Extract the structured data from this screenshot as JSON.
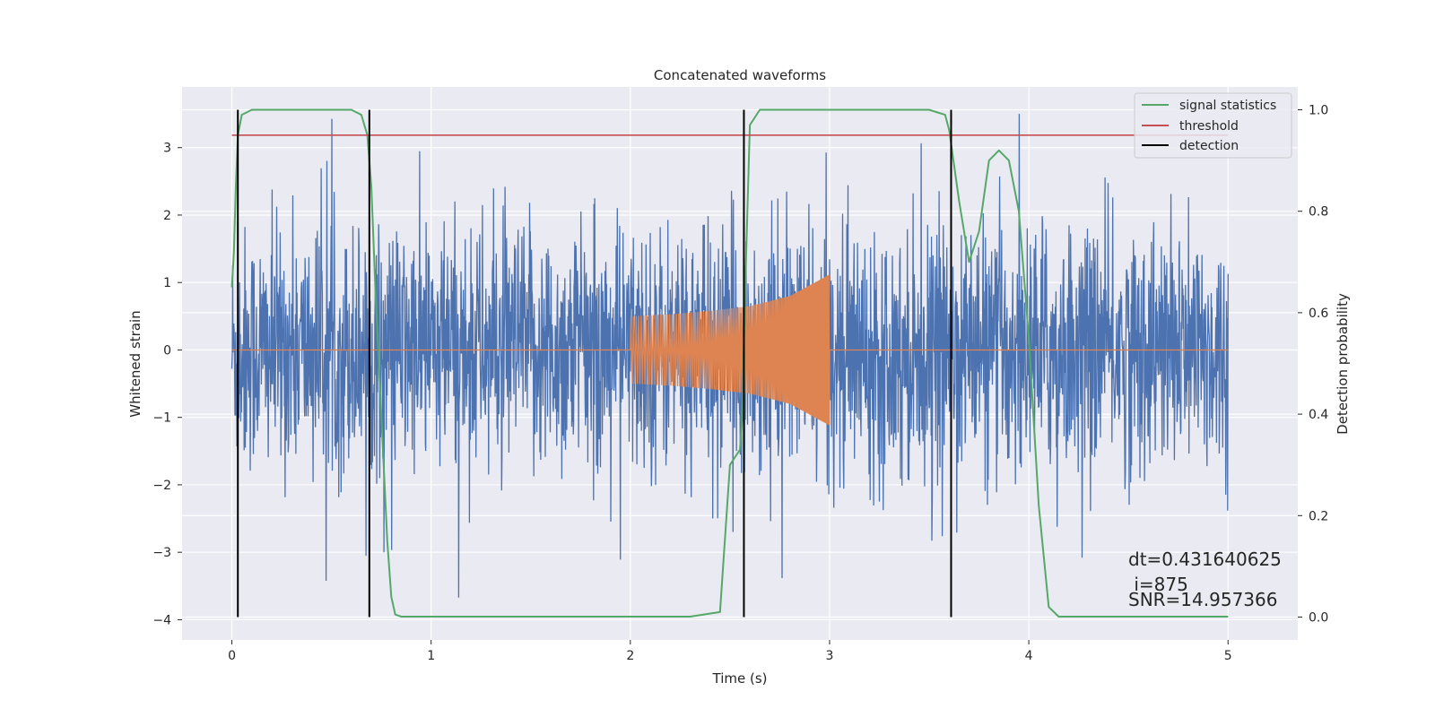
{
  "chart_data": {
    "type": "line",
    "title": "Concatenated waveforms",
    "xlabel": "Time (s)",
    "ylabel": "Whitened strain",
    "y2label": "Detection probability",
    "xlim": [
      -0.25,
      5.35
    ],
    "ylim": [
      -4.3,
      3.9
    ],
    "y2lim": [
      -0.045,
      1.045
    ],
    "grid": true,
    "legend_position": "top-right",
    "x_ticks": [
      "0",
      "1",
      "2",
      "3",
      "4",
      "5"
    ],
    "y_ticks": [
      "3",
      "2",
      "1",
      "0",
      "−1",
      "−2",
      "−3",
      "−4"
    ],
    "y2_ticks": [
      "1.0",
      "0.8",
      "0.6",
      "0.4",
      "0.2",
      "0.0"
    ],
    "colors": {
      "strain": "#4c72b0",
      "injected": "#dd8452",
      "statistic": "#55a868",
      "threshold": "#c44e52",
      "detection": "#000000",
      "plot_bg": "#eaeaf2",
      "grid": "#ffffff"
    },
    "series": [
      {
        "name": "",
        "kind": "whitened strain noise",
        "x_range": [
          0,
          5
        ],
        "amplitude_sd": 0.9,
        "range_observed": [
          -4.05,
          3.5
        ]
      },
      {
        "name": "",
        "kind": "injected chirp waveform",
        "x": [
          2.0,
          2.2,
          2.4,
          2.6,
          2.8,
          3.0
        ],
        "envelope": [
          0.5,
          0.53,
          0.58,
          0.65,
          0.8,
          1.12
        ],
        "x_range": [
          0,
          5
        ]
      },
      {
        "name": "signal statistics",
        "axis": "right",
        "x": [
          0.0,
          0.01,
          0.02,
          0.03,
          0.05,
          0.1,
          0.2,
          0.6,
          0.65,
          0.68,
          0.7,
          0.72,
          0.75,
          0.78,
          0.8,
          0.82,
          0.85,
          0.9,
          2.3,
          2.45,
          2.5,
          2.55,
          2.56,
          2.58,
          2.6,
          2.65,
          3.5,
          3.58,
          3.6,
          3.65,
          3.7,
          3.75,
          3.8,
          3.85,
          3.9,
          3.95,
          4.0,
          4.05,
          4.1,
          4.15,
          4.2,
          5.0
        ],
        "values": [
          0.65,
          0.72,
          0.85,
          0.95,
          0.99,
          1.0,
          1.0,
          1.0,
          0.99,
          0.95,
          0.85,
          0.65,
          0.4,
          0.15,
          0.04,
          0.005,
          0.001,
          0.001,
          0.001,
          0.01,
          0.3,
          0.33,
          0.38,
          0.7,
          0.97,
          1.0,
          1.0,
          0.99,
          0.96,
          0.82,
          0.7,
          0.76,
          0.9,
          0.92,
          0.9,
          0.8,
          0.55,
          0.22,
          0.02,
          0.001,
          0.001,
          0.001
        ]
      },
      {
        "name": "threshold",
        "axis": "right",
        "x": [
          0,
          5
        ],
        "values": [
          0.95,
          0.95
        ]
      },
      {
        "name": "detection",
        "kind": "vertical lines",
        "x": [
          0.03,
          0.69,
          2.57,
          3.61
        ]
      }
    ],
    "legend": [
      "signal statistics",
      "threshold",
      "detection"
    ],
    "annotations": [
      "dt=0.431640625",
      " i=875",
      "SNR=14.957366"
    ]
  }
}
